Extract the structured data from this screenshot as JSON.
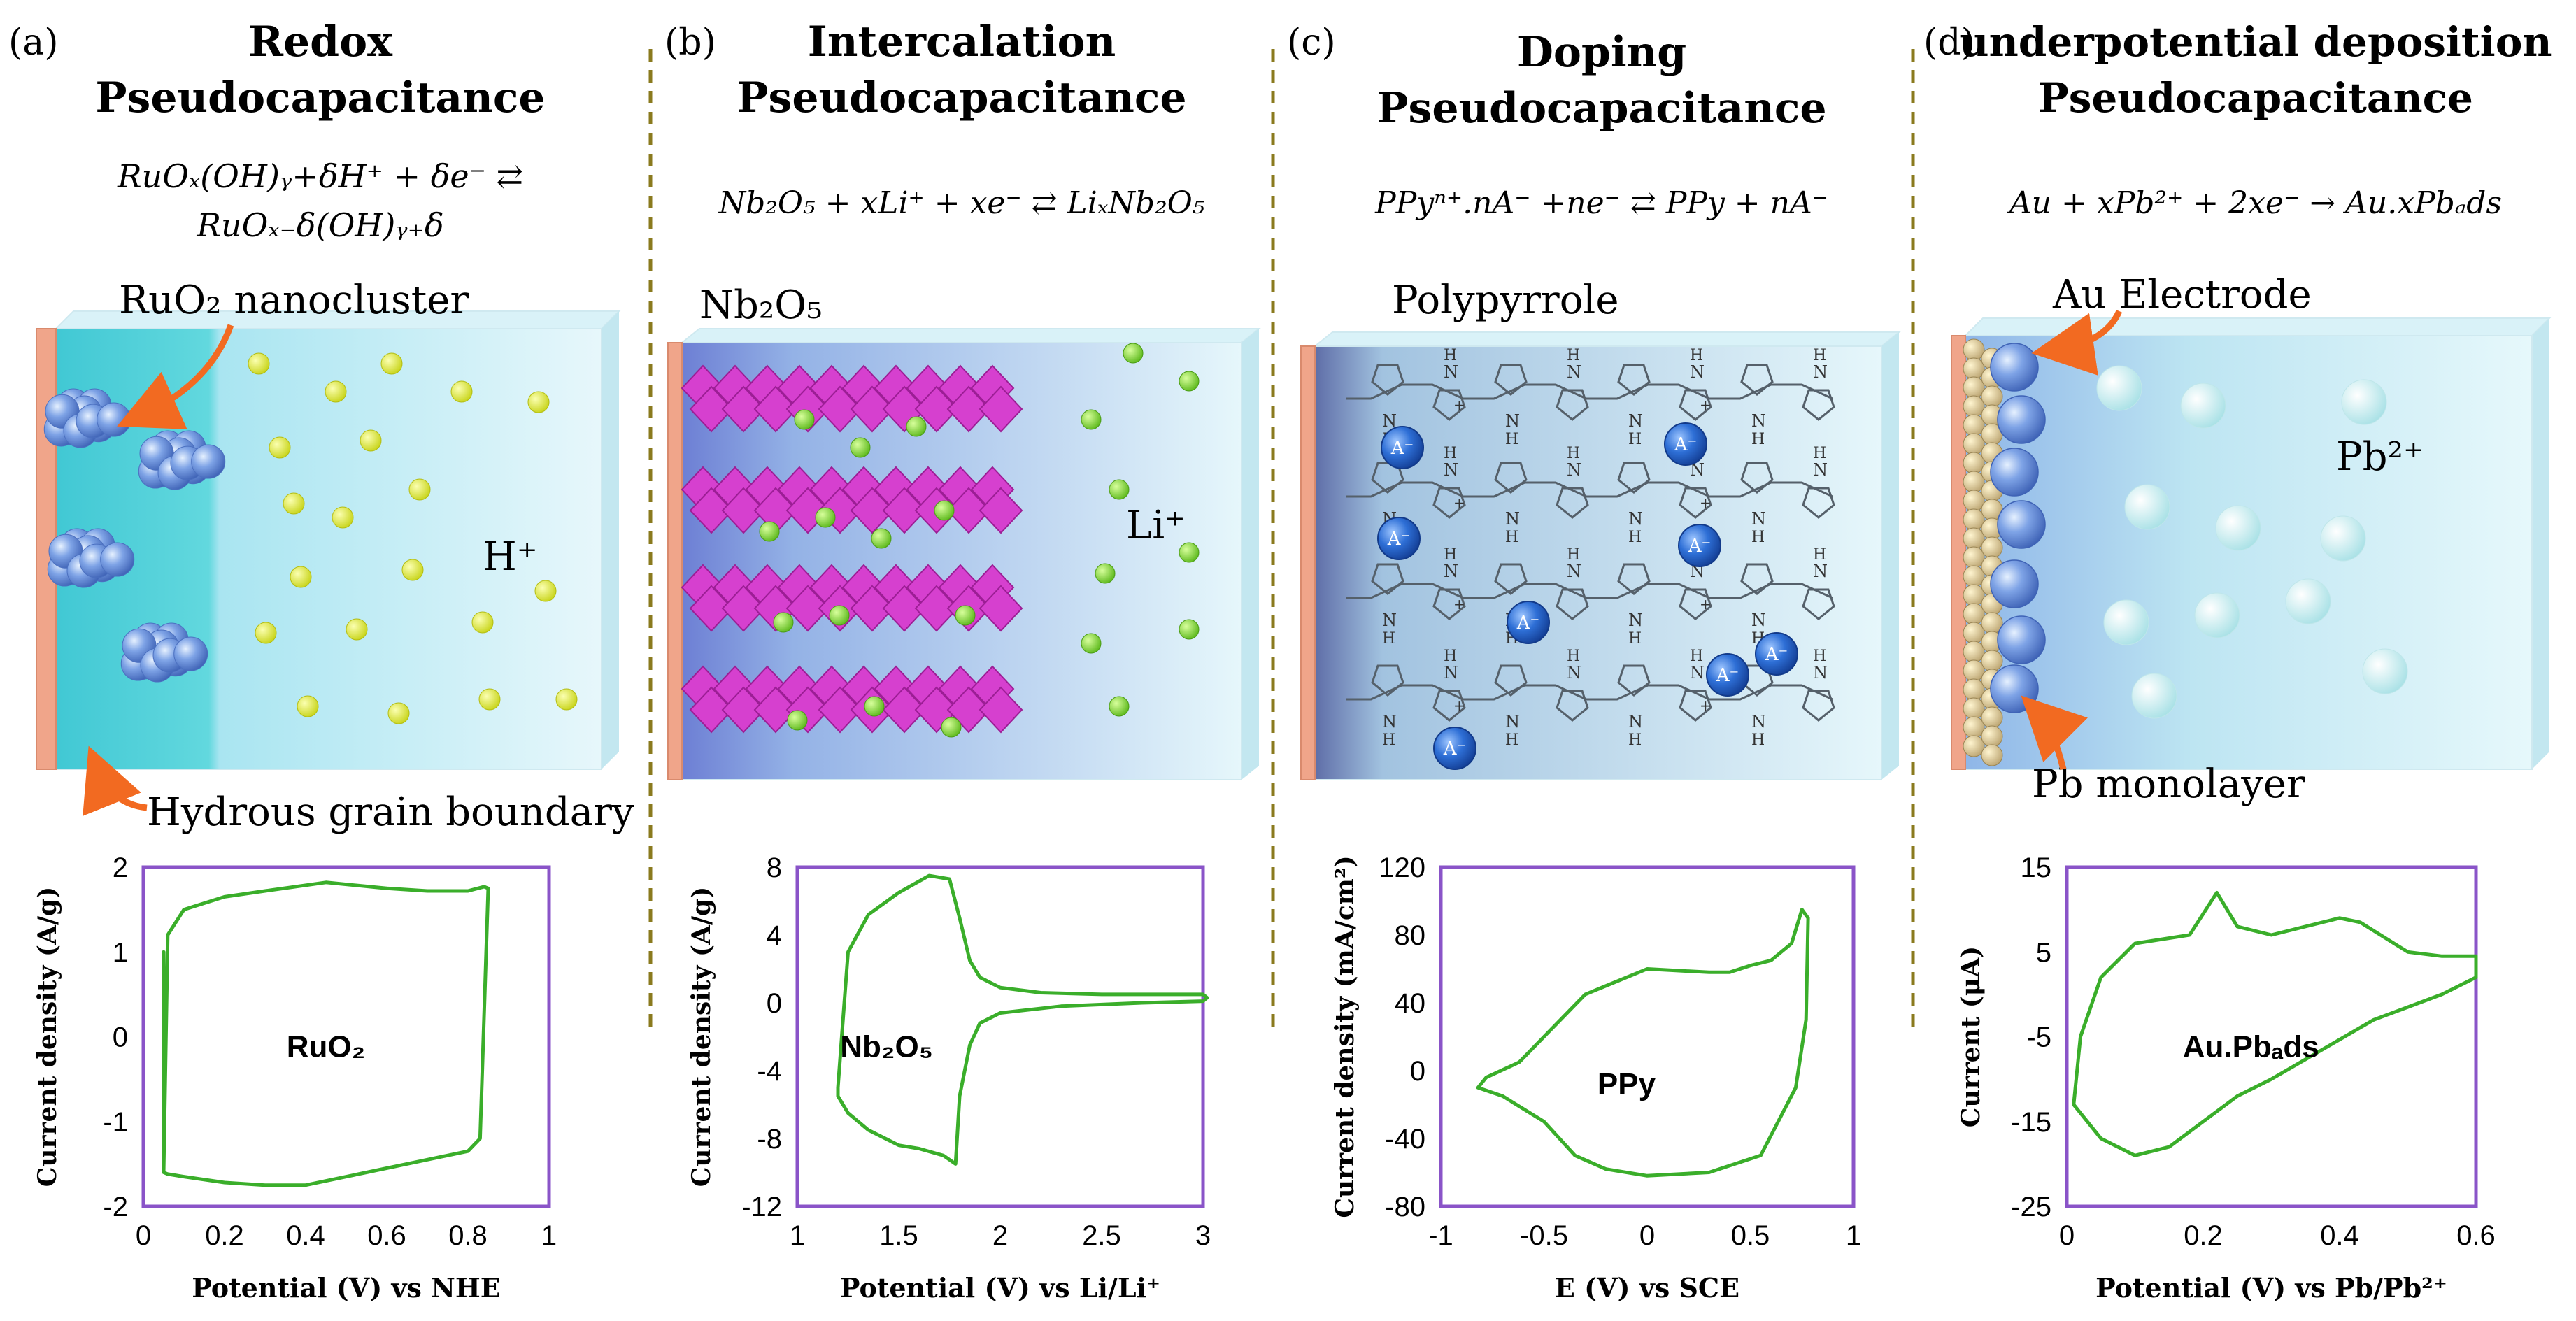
{
  "panels": [
    {
      "letter": "(a)",
      "title_line1": "Redox",
      "title_line2": "Pseudocapacitance",
      "equation_line1": "RuOₓ(OH)ᵧ+δH⁺ + δe⁻ ⇄",
      "equation_line2": "RuOₓ₋δ(OH)ᵧ₊δ",
      "material_label": "RuO₂ nanocluster",
      "ion_label": "H⁺",
      "boundary_label": "Hydrous grain boundary",
      "particle_color": "#e3ef2a"
    },
    {
      "letter": "(b)",
      "title_line1": "Intercalation",
      "title_line2": "Pseudocapacitance",
      "equation_line1": "Nb₂O₅ + xLi⁺ + xe⁻ ⇄ LiₓNb₂O₅",
      "material_label": "Nb₂O₅",
      "ion_label": "Li⁺",
      "particle_color": "#8fdf2f",
      "crystal_color": "#d640cf"
    },
    {
      "letter": "(c)",
      "title_line1": "Doping",
      "title_line2": "Pseudocapacitance",
      "equation_line1": "PPyⁿ⁺.nA⁻ +ne⁻ ⇄ PPy + nA⁻",
      "material_label": "Polypyrrole",
      "anion_label": "A⁻",
      "pyrrole_nh_label": "H",
      "pyrrole_n_label": "N",
      "polaron_label": "+"
    },
    {
      "letter": "(d)",
      "title_line1": "underpotential deposition",
      "title_line2": "Pseudocapacitance",
      "equation_line1": "Au + xPb²⁺ + 2xe⁻ → Au.xPbₐds",
      "material_label": "Au Electrode",
      "ion_label": "Pb²⁺",
      "monolayer_label": "Pb monolayer"
    }
  ],
  "colors": {
    "cv_curve": "#3aae2a",
    "plot_frame": "#8a54c8",
    "arrow": "#f26a21",
    "divider": "#8a7a1e",
    "electrode": "#f0a58a"
  },
  "chart_data": [
    {
      "type": "line",
      "title": "",
      "inset_label": "RuO₂",
      "xlabel": "Potential (V) vs NHE",
      "ylabel": "Current density (A/g)",
      "xlim": [
        0,
        1
      ],
      "ylim": [
        -2,
        2
      ],
      "xticks": [
        "0",
        "0.2",
        "0.4",
        "0.6",
        "0.8",
        "1"
      ],
      "yticks": [
        "2",
        "1",
        "0",
        "-1",
        "-2"
      ],
      "x": [
        0.05,
        0.06,
        0.1,
        0.2,
        0.3,
        0.45,
        0.6,
        0.7,
        0.8,
        0.84,
        0.85,
        0.83,
        0.8,
        0.7,
        0.55,
        0.4,
        0.3,
        0.2,
        0.1,
        0.06,
        0.05,
        0.05,
        0.05
      ],
      "y": [
        -1.6,
        1.2,
        1.5,
        1.65,
        1.72,
        1.82,
        1.75,
        1.72,
        1.72,
        1.77,
        1.75,
        -1.2,
        -1.35,
        -1.45,
        -1.6,
        -1.75,
        -1.75,
        -1.72,
        -1.65,
        -1.62,
        -1.6,
        0,
        1.0
      ]
    },
    {
      "type": "line",
      "title": "",
      "inset_label": "Nb₂O₅",
      "xlabel": "Potential (V) vs Li/Li⁺",
      "ylabel": "Current density (A/g)",
      "xlim": [
        1,
        3
      ],
      "ylim": [
        -12,
        8
      ],
      "xticks": [
        "1",
        "1.5",
        "2",
        "2.5",
        "3"
      ],
      "yticks": [
        "8",
        "4",
        "0",
        "-4",
        "-8",
        "-12"
      ],
      "x": [
        1.2,
        1.25,
        1.35,
        1.5,
        1.65,
        1.75,
        1.8,
        1.85,
        1.9,
        2.0,
        2.2,
        2.5,
        2.8,
        3.0,
        3.02,
        3.0,
        2.7,
        2.3,
        2.0,
        1.9,
        1.85,
        1.8,
        1.78,
        1.72,
        1.6,
        1.5,
        1.35,
        1.25,
        1.2,
        1.2
      ],
      "y": [
        -5,
        3,
        5.2,
        6.5,
        7.5,
        7.3,
        5,
        2.5,
        1.5,
        0.9,
        0.6,
        0.5,
        0.5,
        0.5,
        0.3,
        0.1,
        0,
        -0.2,
        -0.6,
        -1.2,
        -2.5,
        -5.5,
        -9.5,
        -9,
        -8.6,
        -8.4,
        -7.5,
        -6.5,
        -5.5,
        -5
      ]
    },
    {
      "type": "line",
      "title": "",
      "inset_label": "PPy",
      "xlabel": "E (V) vs SCE",
      "ylabel": "Current density (mA/cm²)",
      "xlim": [
        -1,
        1
      ],
      "ylim": [
        -80,
        120
      ],
      "xticks": [
        "-1",
        "-0.5",
        "0",
        "0.5",
        "1"
      ],
      "yticks": [
        "120",
        "80",
        "40",
        "0",
        "-40",
        "-80"
      ],
      "x": [
        -0.82,
        -0.7,
        -0.5,
        -0.35,
        -0.2,
        0,
        0.3,
        0.55,
        0.72,
        0.77,
        0.78,
        0.75,
        0.7,
        0.6,
        0.5,
        0.4,
        0.3,
        0.0,
        -0.3,
        -0.5,
        -0.62,
        -0.78,
        -0.82
      ],
      "y": [
        -10,
        -15,
        -30,
        -50,
        -58,
        -62,
        -60,
        -50,
        -10,
        30,
        90,
        95,
        75,
        65,
        62,
        58,
        58,
        60,
        45,
        20,
        5,
        -4,
        -10
      ]
    },
    {
      "type": "line",
      "title": "",
      "inset_label": "Au.Pbₐds",
      "xlabel": "Potential (V) vs Pb/Pb²⁺",
      "ylabel": "Current (μA)",
      "xlim": [
        0,
        0.6
      ],
      "ylim": [
        -25,
        15
      ],
      "xticks": [
        "0",
        "0.2",
        "0.4",
        "0.6"
      ],
      "yticks": [
        "15",
        "5",
        "-5",
        "-15",
        "-25"
      ],
      "x": [
        0.01,
        0.02,
        0.05,
        0.1,
        0.18,
        0.22,
        0.25,
        0.3,
        0.4,
        0.43,
        0.5,
        0.55,
        0.6,
        0.6,
        0.55,
        0.45,
        0.3,
        0.25,
        0.2,
        0.15,
        0.1,
        0.05,
        0.02,
        0.01
      ],
      "y": [
        -13,
        -5,
        2,
        6,
        7,
        12,
        8,
        7,
        9,
        8.5,
        5,
        4.5,
        4.5,
        2,
        0,
        -3,
        -10,
        -12,
        -15,
        -18,
        -19,
        -17,
        -14,
        -13
      ]
    }
  ]
}
